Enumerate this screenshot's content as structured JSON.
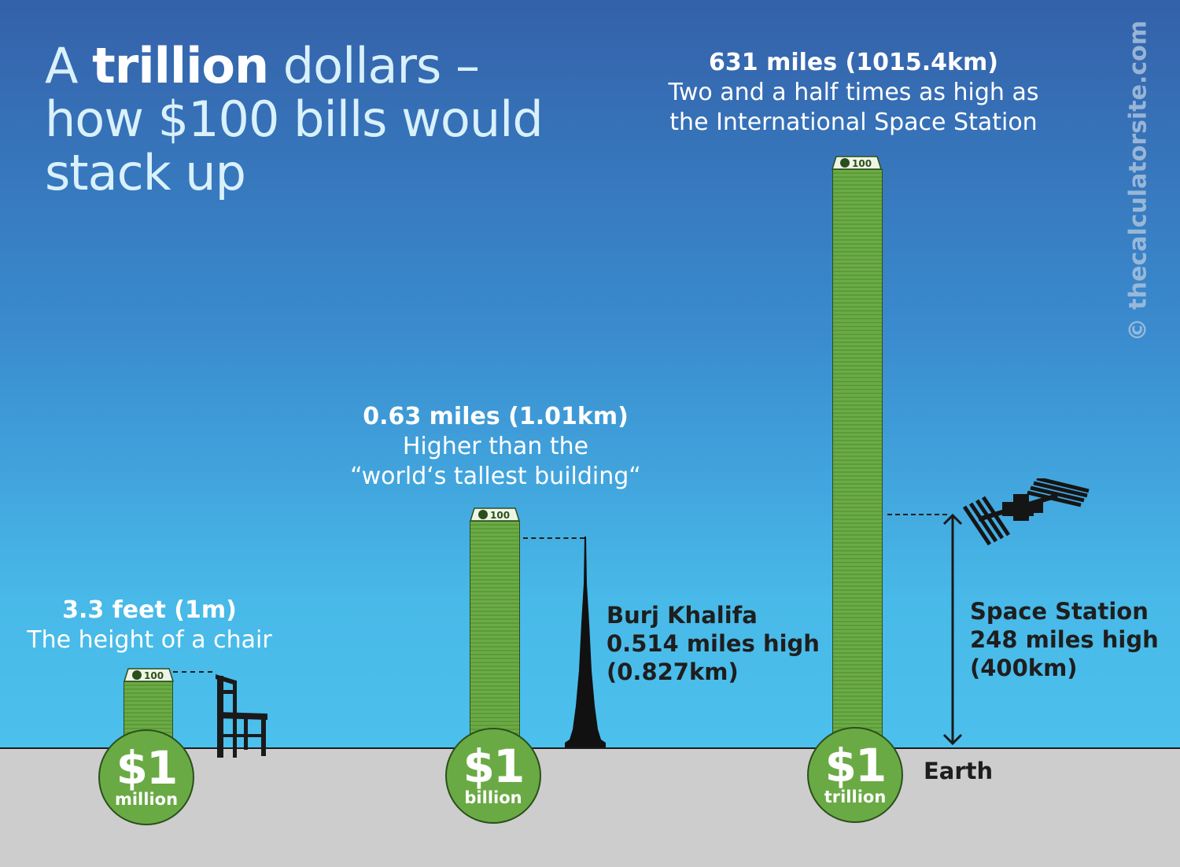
{
  "title": {
    "part1": "A ",
    "bold": "trillion",
    "part2": " dollars –",
    "line2": "how $100 bills would",
    "line3": "stack up"
  },
  "watermark": "© thecalculatorsite.com",
  "bill_label": "100",
  "stacks": [
    {
      "amount": "$1",
      "unit": "million",
      "height": "3.3 feet (1m)",
      "description": "The height of a chair"
    },
    {
      "amount": "$1",
      "unit": "billion",
      "height": "0.63 miles (1.01km)",
      "description_line1": "Higher than the",
      "description_line2": "“world‘s tallest building“"
    },
    {
      "amount": "$1",
      "unit": "trillion",
      "height": "631 miles (1015.4km)",
      "description_line1": "Two and a half times as high as",
      "description_line2": "the International Space Station"
    }
  ],
  "burj": {
    "line1": "Burj Khalifa",
    "line2": "0.514 miles high",
    "line3": "(0.827km)"
  },
  "station": {
    "line1": "Space Station",
    "line2": "248 miles high",
    "line3": "(400km)"
  },
  "earth": "Earth",
  "icons": [
    "chair-icon",
    "burj-khalifa-icon",
    "space-station-icon",
    "dollar-bill-icon"
  ],
  "colors": {
    "sky_top": "#3461a9",
    "sky_bottom": "#4cc0ec",
    "ground": "#cdcdcd",
    "money_green": "#6aaa44"
  }
}
